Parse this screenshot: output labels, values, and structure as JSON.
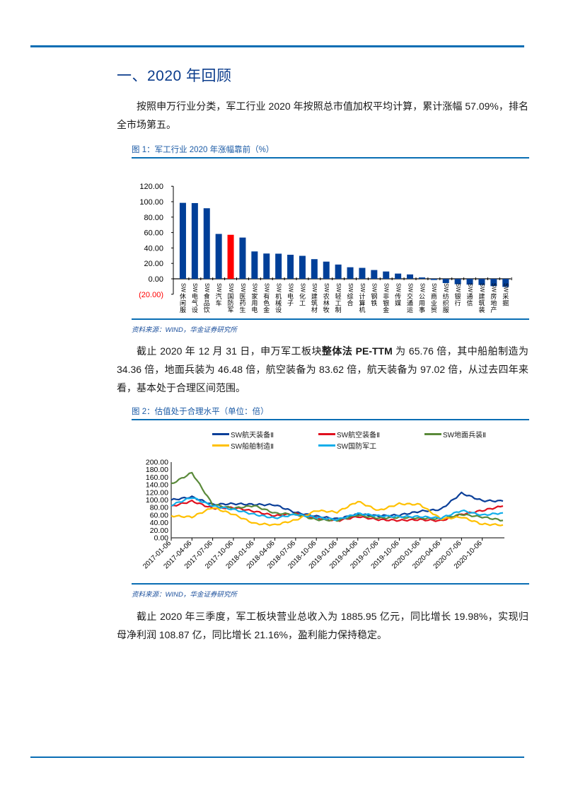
{
  "section": {
    "title": "一、2020 年回顾"
  },
  "paragraphs": [
    {
      "text": "按照申万行业分类，军工行业 2020 年按照总市值加权平均计算，累计涨幅 57.09%，排名全市场第五。"
    },
    {
      "pre": "截止 2020 年 12 月 31 日，申万军工板块",
      "bold": "整体法 PE-TTM",
      "post": " 为 65.76 倍，其中船舶制造为 34.36 倍，地面兵装为 46.48 倍，航空装备为 83.62 倍，航天装备为 97.02 倍，从过去四年来看，基本处于合理区间范围。"
    },
    {
      "text": "截止 2020 年三季度，军工板块营业总收入为 1885.95 亿元，同比增长 19.98%，实现归母净利润 108.87 亿，同比增长 21.16%，盈利能力保持稳定。"
    }
  ],
  "figures": [
    {
      "caption": "图 1：军工行业 2020 年涨幅靠前（%）",
      "source": "资料来源：WIND，华金证券研究所"
    },
    {
      "caption": "图 2：估值处于合理水平（单位：倍）",
      "source": "资料来源：WIND，华金证券研究所"
    }
  ],
  "colors": {
    "accent": "#0A6EB4",
    "title": "#0B3C8C",
    "bar": "#003F98",
    "highlight_bar": "#FF0000",
    "negative_label": "#FF0000"
  },
  "chart_data": [
    {
      "type": "bar",
      "title": "图 1：军工行业 2020 年涨幅靠前（%）",
      "xlabel": "",
      "ylabel": "",
      "ylim": [
        -20,
        120
      ],
      "yticks": [
        "(20.00)",
        "0.00",
        "20.00",
        "40.00",
        "60.00",
        "80.00",
        "100.00",
        "120.00"
      ],
      "grid": false,
      "highlight": "SW国防军工",
      "categories": [
        "SW休闲服务",
        "SW电气设备",
        "SW食品饮料",
        "SW汽车",
        "SW国防军工",
        "SW医药生物",
        "SW家用电器",
        "SW有色金属",
        "SW机械设备",
        "SW电子",
        "SW化工",
        "SW建筑材料",
        "SW农林牧渔",
        "SW轻工制造",
        "SW综合",
        "SW计算机",
        "SW钢铁",
        "SW非银金融",
        "SW传媒",
        "SW交通运输",
        "SW公用事业",
        "SW商业贸易",
        "SW纺织服装",
        "SW银行",
        "SW通信",
        "SW建筑装饰",
        "SW房地产",
        "SW采掘"
      ],
      "values": [
        98.5,
        98.2,
        91.5,
        58.2,
        57.09,
        53.5,
        35.5,
        32.8,
        32.6,
        31.2,
        29.8,
        25.5,
        22.3,
        18.5,
        15.0,
        14.2,
        11.4,
        9.5,
        6.8,
        5.7,
        1.8,
        -1.5,
        -5.5,
        -7.0,
        -7.5,
        -8.0,
        -9.5,
        -10.5
      ]
    },
    {
      "type": "line",
      "title": "图 2：估值处于合理水平（单位：倍）",
      "xlabel": "",
      "ylabel": "",
      "ylim": [
        0,
        200
      ],
      "yticks": [
        "0.00",
        "20.00",
        "40.00",
        "60.00",
        "80.00",
        "100.00",
        "120.00",
        "140.00",
        "160.00",
        "180.00",
        "200.00"
      ],
      "grid": false,
      "legend_position": "top",
      "x": [
        "2017-01-06",
        "2017-04-06",
        "2017-07-06",
        "2017-10-06",
        "2018-01-06",
        "2018-04-06",
        "2018-07-06",
        "2018-10-06",
        "2019-01-06",
        "2019-04-06",
        "2019-07-06",
        "2019-10-06",
        "2020-01-06",
        "2020-04-06",
        "2020-07-06",
        "2020-10-06",
        "2020-12-31"
      ],
      "series": [
        {
          "name": "SW航天装备Ⅱ",
          "color": "#0B3F99",
          "values": [
            100,
            108,
            88,
            90,
            88,
            87,
            67,
            57,
            50,
            62,
            58,
            60,
            70,
            75,
            118,
            98,
            97
          ]
        },
        {
          "name": "SW航空装备Ⅱ",
          "color": "#E0101E",
          "values": [
            83,
            97,
            78,
            80,
            70,
            58,
            64,
            52,
            45,
            56,
            48,
            46,
            48,
            45,
            62,
            72,
            84
          ]
        },
        {
          "name": "SW地面兵装Ⅱ",
          "color": "#5A8A3A",
          "values": [
            142,
            172,
            88,
            78,
            85,
            65,
            62,
            48,
            46,
            60,
            52,
            54,
            52,
            50,
            62,
            55,
            46
          ]
        },
        {
          "name": "SW船舶制造Ⅱ",
          "color": "#FFC000",
          "values": [
            58,
            55,
            80,
            62,
            38,
            34,
            47,
            72,
            68,
            96,
            72,
            90,
            88,
            50,
            55,
            36,
            34
          ]
        },
        {
          "name": "SW国防军工",
          "color": "#12AEEA",
          "values": [
            86,
            107,
            84,
            75,
            62,
            52,
            62,
            54,
            48,
            64,
            58,
            56,
            56,
            52,
            72,
            60,
            66
          ]
        }
      ]
    }
  ]
}
